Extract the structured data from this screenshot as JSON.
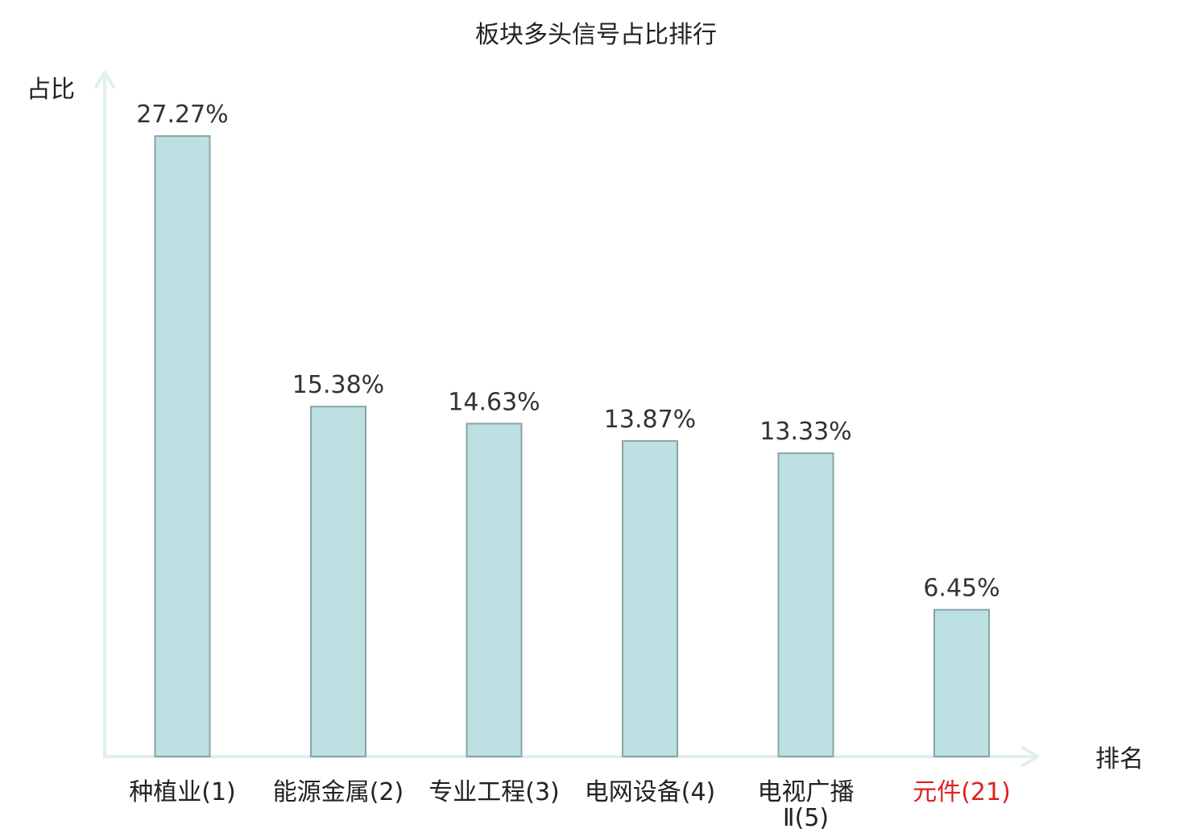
{
  "chart_data": {
    "type": "bar",
    "title": "板块多头信号占比排行",
    "ylabel": "占比",
    "xlabel": "排名",
    "categories": [
      "种植业(1)",
      "能源金属(2)",
      "专业工程(3)",
      "电网设备(4)",
      "电视广播Ⅱ(5)",
      "元件(21)"
    ],
    "values": [
      27.27,
      15.38,
      14.63,
      13.87,
      13.33,
      6.45
    ],
    "value_labels": [
      "27.27%",
      "15.38%",
      "14.63%",
      "13.87%",
      "13.33%",
      "6.45%"
    ],
    "category_lines": [
      [
        "种植业(1)"
      ],
      [
        "能源金属(2)"
      ],
      [
        "专业工程(3)"
      ],
      [
        "电网设备(4)"
      ],
      [
        "电视广播",
        "Ⅱ(5)"
      ],
      [
        "元件(21)"
      ]
    ],
    "highlight_index": 5,
    "ylim": [
      0,
      30
    ],
    "grid": false,
    "colors": {
      "bar_fill": "#bde0e2",
      "bar_stroke": "#8aa3a5",
      "axis": "#dff0ee",
      "highlight_label": "#e02020"
    }
  }
}
